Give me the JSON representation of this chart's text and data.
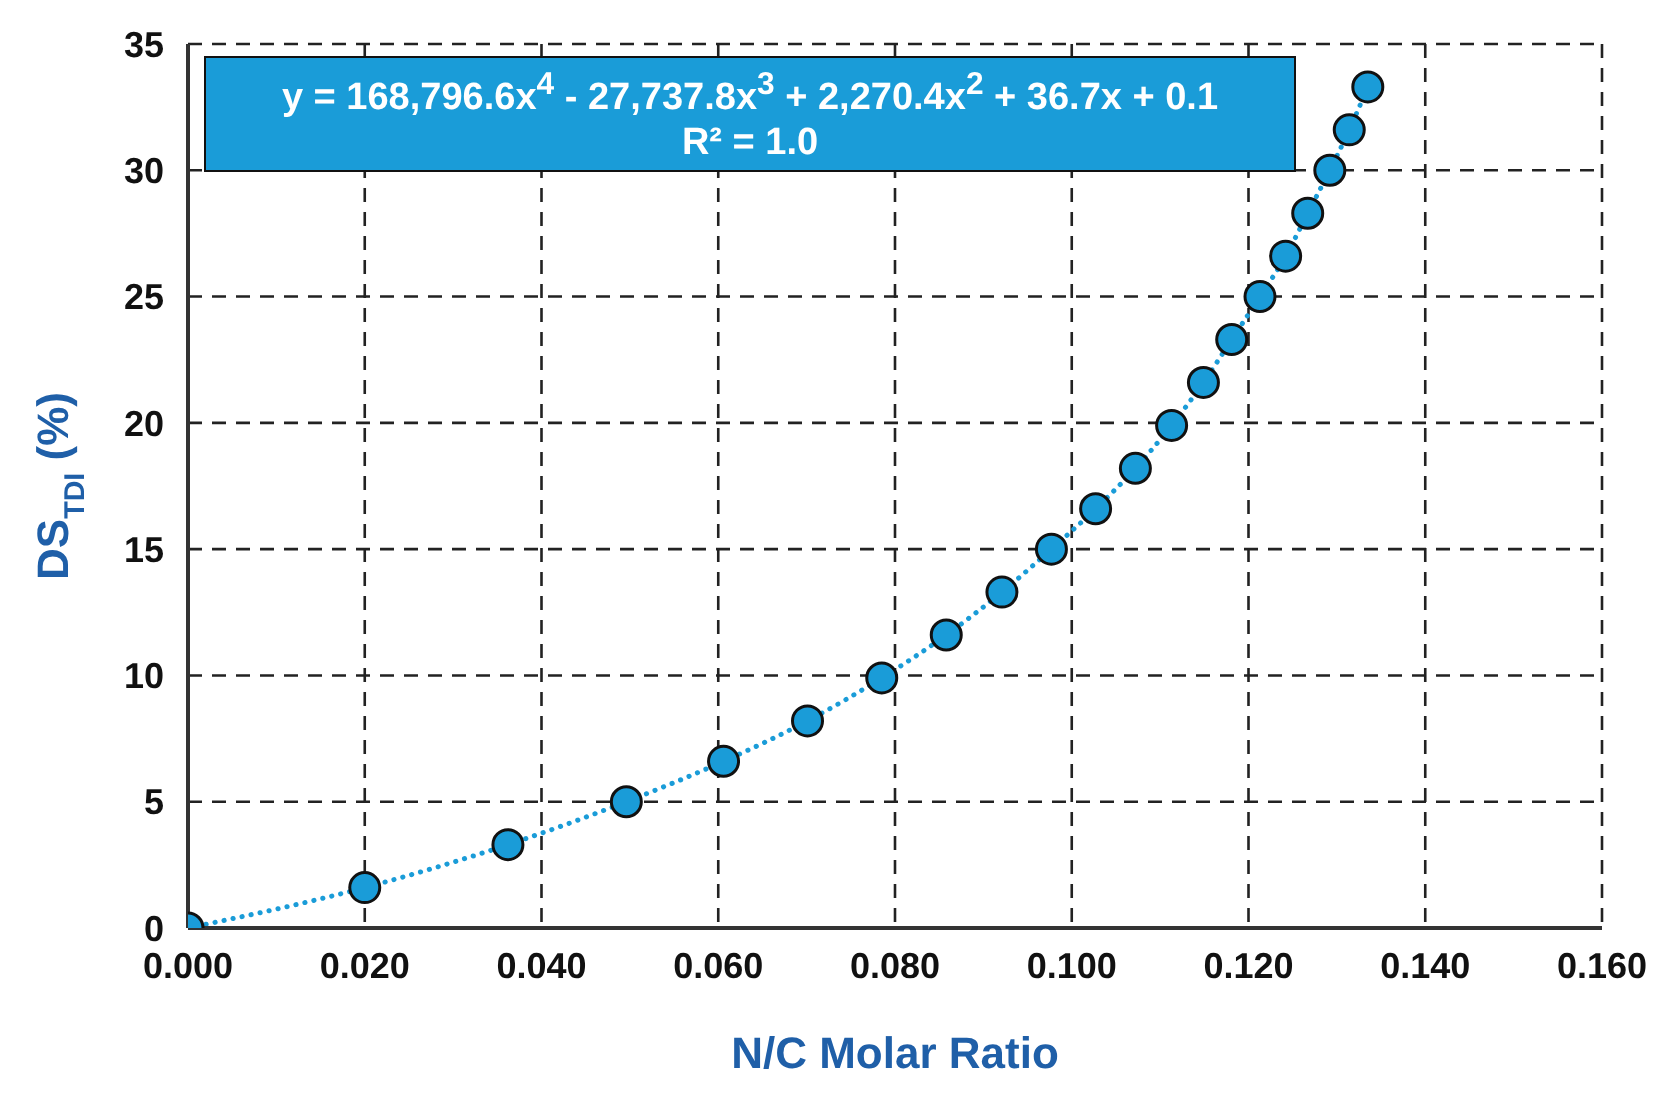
{
  "chart_data": {
    "type": "scatter",
    "xlabel": "N/C Molar Ratio",
    "ylabel": "DS$_{TDI}$ (%)",
    "annotations": [
      "y = 168,796.6x$^{4}$ - 27,737.8x$^{3}$ + 2,270.4x$^{2}$ + 36.7x + 0.1",
      "R² = 1.0"
    ],
    "series": [
      {
        "type": "scatter",
        "color": "#1a9cd8",
        "x": [
          0,
          0.02,
          0.0362,
          0.0496,
          0.0606,
          0.0701,
          0.0785,
          0.0858,
          0.0921,
          0.0977,
          0.1027,
          0.1072,
          0.1113,
          0.1149,
          0.1181,
          0.1213,
          0.1242,
          0.1267,
          0.1292,
          0.1314,
          0.1335
        ],
        "values": [
          0,
          1.6,
          3.3,
          5.0,
          6.6,
          8.2,
          9.9,
          11.6,
          13.3,
          15.0,
          16.6,
          18.2,
          19.9,
          21.6,
          23.3,
          25.0,
          26.6,
          28.3,
          30.0,
          31.6,
          33.3
        ]
      },
      {
        "type": "line",
        "color": "#1a9cd8",
        "line_style": "dotted",
        "marker": "none",
        "x": [
          0,
          0.02,
          0.0362,
          0.0496,
          0.0606,
          0.0701,
          0.0785,
          0.0858,
          0.0921,
          0.0977,
          0.1027,
          0.1072,
          0.1113,
          0.1149,
          0.1181,
          0.1213,
          0.1242,
          0.1267,
          0.1292,
          0.1314,
          0.1335
        ],
        "values": [
          0,
          1.6,
          3.3,
          5.0,
          6.6,
          8.2,
          9.9,
          11.6,
          13.3,
          15.0,
          16.6,
          18.2,
          19.9,
          21.6,
          23.3,
          25.0,
          26.6,
          28.3,
          30.0,
          31.6,
          33.3
        ]
      }
    ],
    "xlim": [
      0,
      0.16
    ],
    "xticks": [
      {
        "value": 0,
        "label": "0.000"
      },
      {
        "value": 0.02,
        "label": "0.020"
      },
      {
        "value": 0.04,
        "label": "0.040"
      },
      {
        "value": 0.06,
        "label": "0.060"
      },
      {
        "value": 0.08,
        "label": "0.080"
      },
      {
        "value": 0.1,
        "label": "0.100"
      },
      {
        "value": 0.12,
        "label": "0.120"
      },
      {
        "value": 0.14,
        "label": "0.140"
      },
      {
        "value": 0.16,
        "label": "0.160"
      }
    ],
    "ylim": [
      0,
      35
    ],
    "yticks": [
      0,
      5,
      10,
      15,
      20,
      25,
      30,
      35
    ],
    "grid": true,
    "marker": "circle"
  }
}
